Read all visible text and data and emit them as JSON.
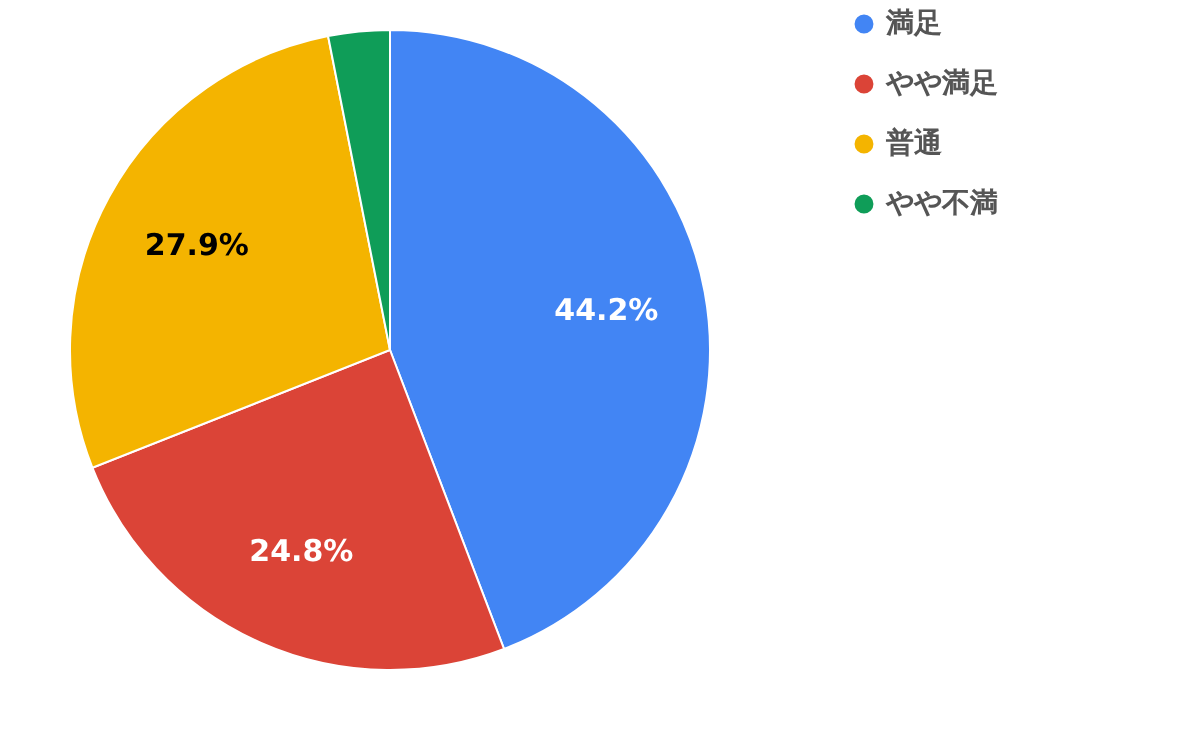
{
  "chart_data": {
    "type": "pie",
    "categories": [
      "満足",
      "やや満足",
      "普通",
      "やや不満"
    ],
    "values": [
      44.2,
      24.8,
      27.9,
      3.1
    ],
    "colors": [
      "#4285f4",
      "#db4437",
      "#f4b400",
      "#0f9d58"
    ],
    "value_labels": [
      "44.2%",
      "24.8%",
      "27.9%",
      null
    ],
    "legend": "right"
  }
}
